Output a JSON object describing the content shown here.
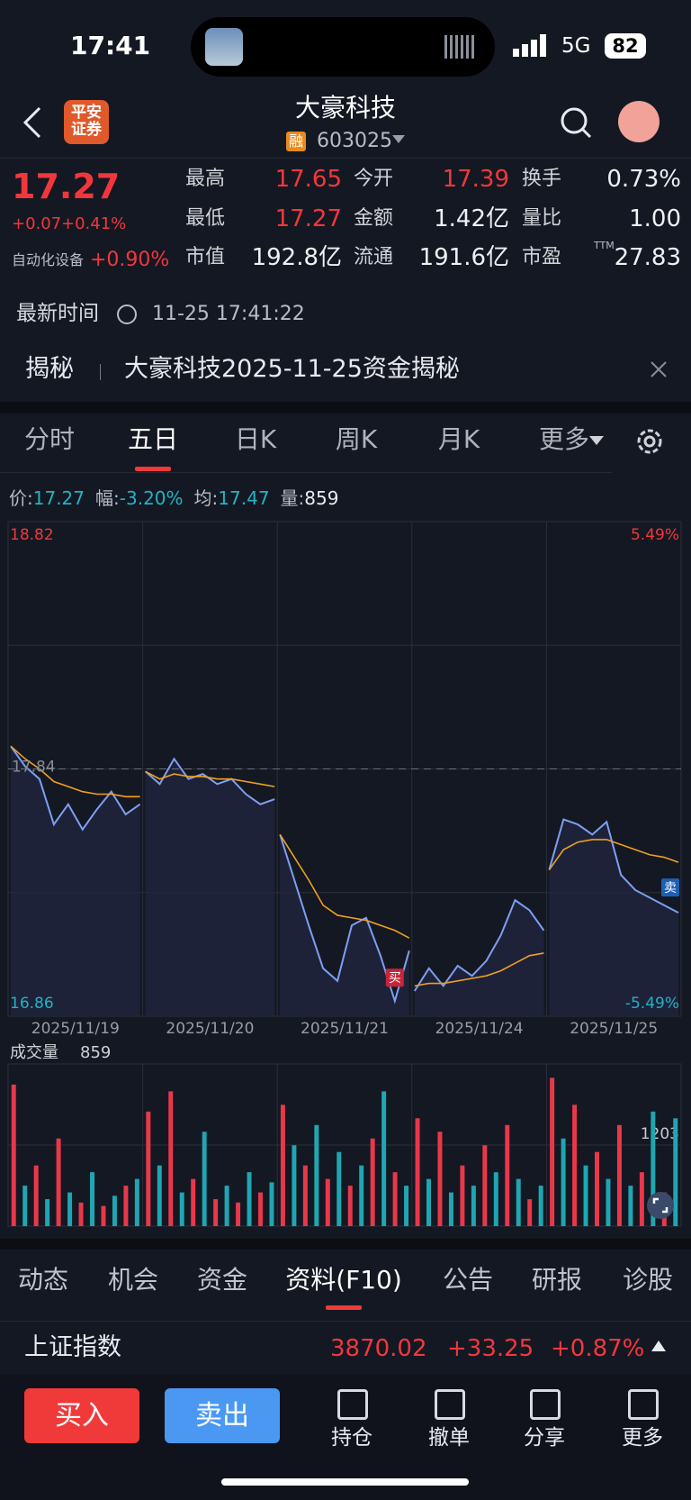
{
  "status": {
    "time": "17:41",
    "network": "5G",
    "battery": "82"
  },
  "header": {
    "broker": [
      "平安",
      "证券"
    ],
    "title": "大豪科技",
    "badge": "融",
    "code": "603025"
  },
  "quote": {
    "price": "17.27",
    "change": "+0.07",
    "pct": "+0.41%",
    "sector": "自动化设备",
    "sector_pct": "+0.90%",
    "stats": [
      [
        "最高",
        "17.65"
      ],
      [
        "今开",
        "17.39"
      ],
      [
        "换手",
        "0.73%"
      ],
      [
        "最低",
        "17.27"
      ],
      [
        "金额",
        "1.42亿"
      ],
      [
        "量比",
        "1.00"
      ],
      [
        "市值",
        "192.8亿"
      ],
      [
        "流通",
        "191.6亿"
      ],
      [
        "市盈",
        "27.83"
      ]
    ],
    "ttm": "TTM"
  },
  "time": {
    "label": "最新时间",
    "value": "11-25 17:41:22"
  },
  "reveal": {
    "tag": "揭秘",
    "text": "大豪科技2025-11-25资金揭秘"
  },
  "tabs": [
    "分时",
    "五日",
    "日K",
    "周K",
    "月K",
    "更多"
  ],
  "active_tab": 1,
  "info": [
    [
      "价:",
      "17.27"
    ],
    [
      "幅:",
      "-3.20%"
    ],
    [
      "均:",
      "17.47"
    ],
    [
      "量:",
      "859"
    ]
  ],
  "chart": {
    "type": "line",
    "ylim": [
      16.86,
      18.82
    ],
    "pct_labels": [
      "5.49%",
      "-5.49%"
    ],
    "prev_close": 17.84,
    "price_color": "#7e9ff2",
    "avg_color": "#f0a020",
    "up_color": "#e8384a",
    "down_color": "#1fa6b2",
    "days": [
      {
        "date": "2025/11/19",
        "price": [
          17.93,
          17.85,
          17.8,
          17.62,
          17.7,
          17.6,
          17.68,
          17.75,
          17.66,
          17.7
        ],
        "avg": [
          17.93,
          17.88,
          17.84,
          17.79,
          17.77,
          17.75,
          17.74,
          17.74,
          17.73,
          17.73
        ],
        "volume": [
          2100,
          600,
          900,
          400,
          1300,
          500,
          350,
          800,
          300,
          450,
          600,
          700
        ]
      },
      {
        "date": "2025/11/20",
        "price": [
          17.83,
          17.78,
          17.88,
          17.8,
          17.82,
          17.78,
          17.8,
          17.74,
          17.7,
          17.72
        ],
        "avg": [
          17.83,
          17.8,
          17.82,
          17.81,
          17.81,
          17.8,
          17.8,
          17.79,
          17.78,
          17.77
        ],
        "volume": [
          1700,
          900,
          2000,
          500,
          700,
          1400,
          400,
          600,
          350,
          800,
          500,
          650
        ]
      },
      {
        "date": "2025/11/21",
        "price": [
          17.58,
          17.4,
          17.22,
          17.05,
          17.0,
          17.22,
          17.25,
          17.1,
          16.92,
          17.12
        ],
        "avg": [
          17.58,
          17.49,
          17.4,
          17.3,
          17.26,
          17.25,
          17.24,
          17.22,
          17.2,
          17.17
        ],
        "volume": [
          1800,
          1200,
          900,
          1500,
          700,
          1100,
          600,
          900,
          1300,
          2000,
          800,
          600
        ]
      },
      {
        "date": "2025/11/24",
        "price": [
          16.96,
          17.05,
          16.98,
          17.06,
          17.02,
          17.08,
          17.18,
          17.32,
          17.28,
          17.2
        ],
        "avg": [
          16.98,
          16.99,
          16.99,
          17.0,
          17.01,
          17.02,
          17.04,
          17.07,
          17.1,
          17.11
        ],
        "volume": [
          1600,
          700,
          1400,
          500,
          900,
          600,
          1200,
          800,
          1500,
          700,
          400,
          600
        ]
      },
      {
        "date": "2025/11/25",
        "price": [
          17.44,
          17.64,
          17.62,
          17.58,
          17.63,
          17.42,
          17.36,
          17.33,
          17.3,
          17.27
        ],
        "avg": [
          17.44,
          17.52,
          17.55,
          17.56,
          17.56,
          17.54,
          17.52,
          17.5,
          17.49,
          17.47
        ],
        "volume": [
          2200,
          1300,
          1800,
          900,
          1100,
          700,
          1500,
          600,
          800,
          1700,
          500,
          1600
        ]
      }
    ],
    "trade_marks": [
      {
        "label": "买",
        "day": 2,
        "index": 8
      },
      {
        "label": "卖",
        "day": 4,
        "index": 9
      }
    ],
    "volume_title": "成交量",
    "volume_value": 859,
    "volume_ylim": [
      0,
      2406
    ],
    "volume_ticks": [
      1203
    ]
  },
  "bottom_tabs": [
    "动态",
    "机会",
    "资金",
    "资料(F10)",
    "公告",
    "研报",
    "诊股"
  ],
  "active_bottom_tab": 3,
  "index": {
    "name": "上证指数",
    "value": "3870.02",
    "change": "+33.25",
    "pct": "+0.87%"
  },
  "actions": {
    "buy": "买入",
    "sell": "卖出",
    "tools": [
      "持仓",
      "撤单",
      "分享",
      "更多"
    ]
  }
}
